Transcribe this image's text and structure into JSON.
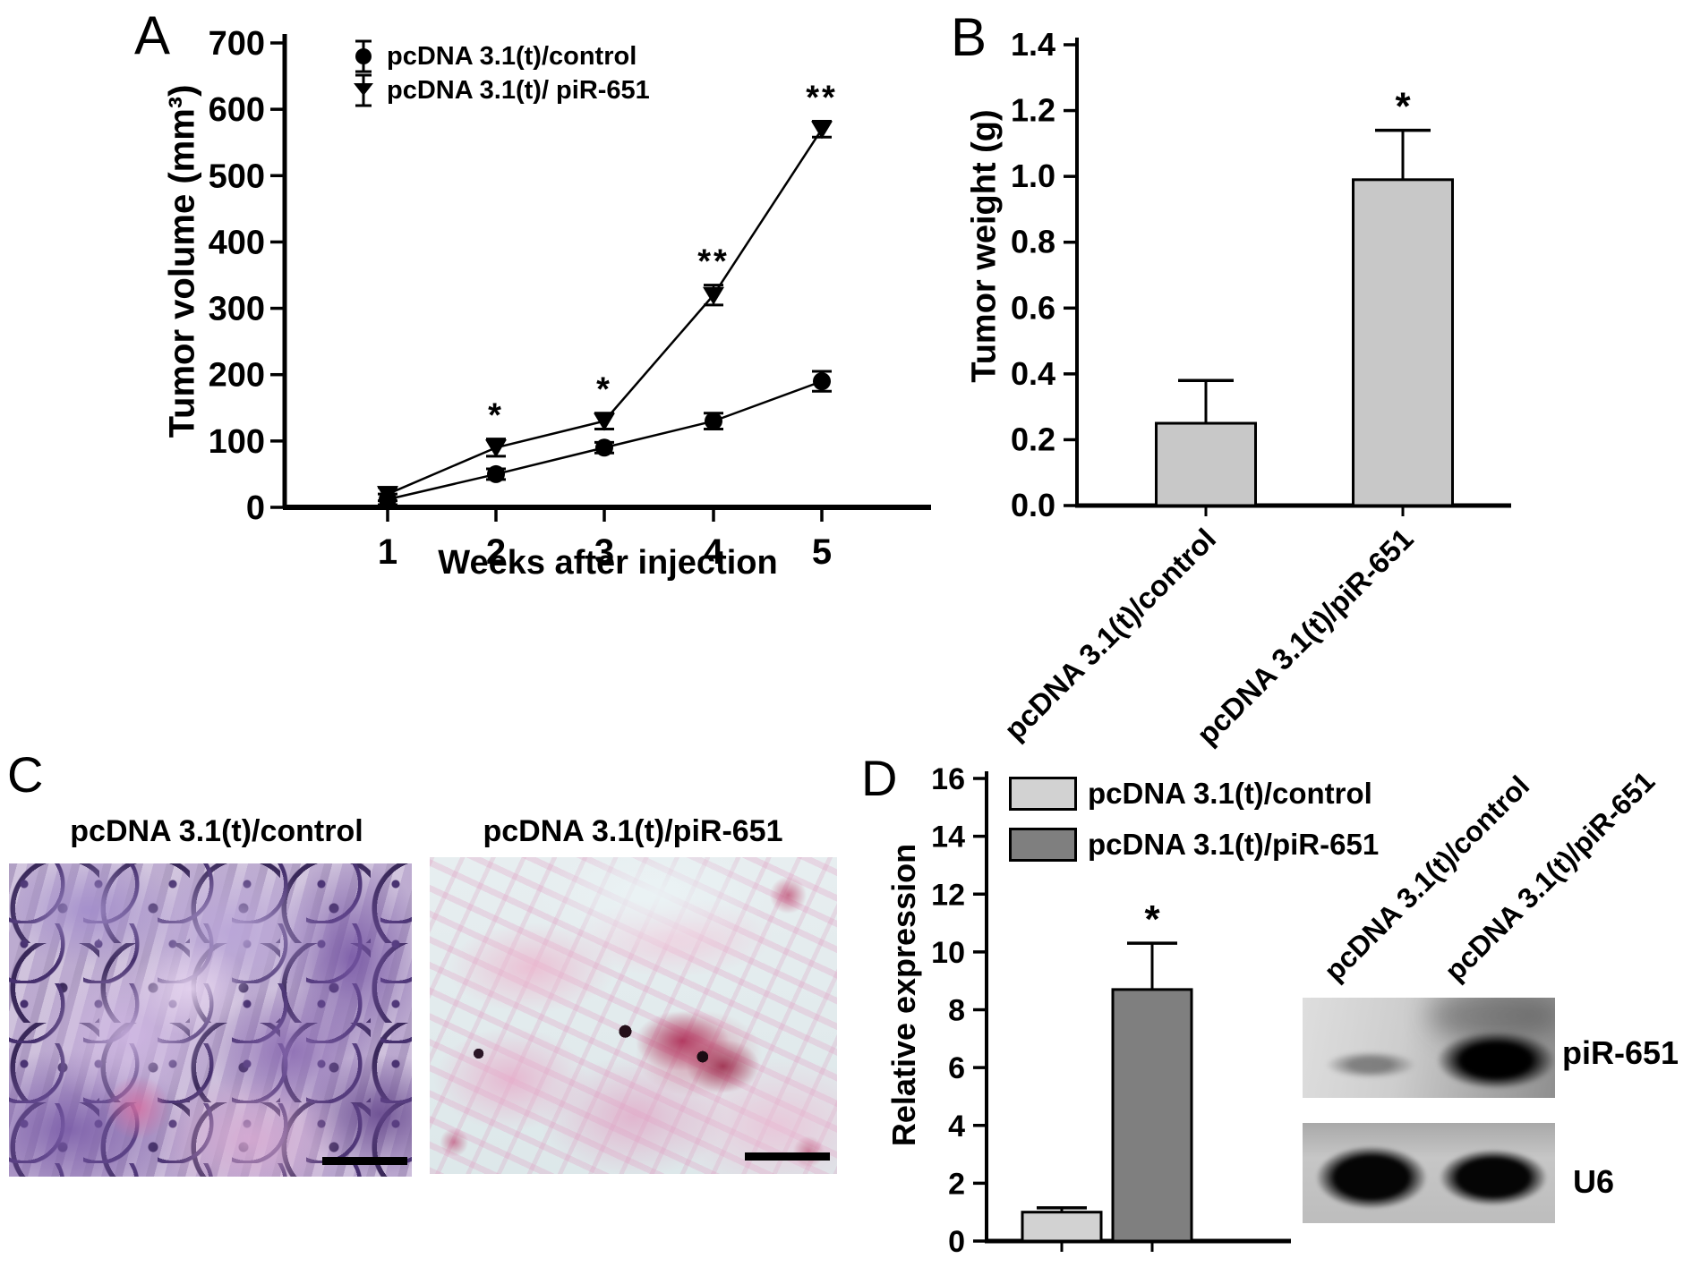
{
  "panels": {
    "a": {
      "label": "A",
      "legend": [
        {
          "icon": "circle-error-bar-icon",
          "label": "pcDNA 3.1(t)/control"
        },
        {
          "icon": "triangle-down-error-bar-icon",
          "label": "pcDNA 3.1(t)/ piR-651"
        }
      ]
    },
    "b": {
      "label": "B"
    },
    "c": {
      "label": "C",
      "images": [
        {
          "title": "pcDNA 3.1(t)/control",
          "content": "H&E stained tumor section, dense purple-violet tissue",
          "scale_bar": "black scale bar"
        },
        {
          "title": "pcDNA 3.1(t)/piR-651",
          "content": "H&E stained tumor section, loose pink tissue with red blood cell clusters",
          "scale_bar": "black scale bar"
        }
      ]
    },
    "d": {
      "label": "D",
      "legend": [
        {
          "swatch_color": "#d2d2d2",
          "label": "pcDNA 3.1(t)/control"
        },
        {
          "swatch_color": "#7f7f7f",
          "label": "pcDNA 3.1(t)/piR-651"
        }
      ],
      "blot": {
        "lanes": [
          "pcDNA 3.1(t)/control",
          "pcDNA 3.1(t)/piR-651"
        ],
        "rows": [
          {
            "label": "piR-651",
            "bands": [
              "faint",
              "strong"
            ]
          },
          {
            "label": "U6",
            "bands": [
              "strong",
              "strong"
            ]
          }
        ]
      }
    }
  },
  "chart_data": [
    {
      "id": "tumor-volume",
      "type": "line",
      "title": "",
      "xlabel": "Weeks after injection",
      "ylabel": "Tumor volume (mm³)",
      "x": [
        1,
        2,
        3,
        4,
        5
      ],
      "ylim": [
        0,
        700
      ],
      "ytick_step": 100,
      "grid": false,
      "legend_position": "top-left-inside",
      "series": [
        {
          "name": "pcDNA 3.1(t)/control",
          "marker": "circle",
          "values": [
            12,
            50,
            90,
            130,
            190
          ],
          "errors": [
            8,
            8,
            8,
            12,
            15
          ],
          "significance": [
            "",
            "",
            "",
            "",
            ""
          ]
        },
        {
          "name": "pcDNA 3.1(t)/piR-651",
          "marker": "triangle-down",
          "values": [
            20,
            90,
            130,
            320,
            570
          ],
          "errors": [
            10,
            13,
            12,
            15,
            12
          ],
          "significance": [
            "",
            "*",
            "*",
            "**",
            "**"
          ]
        }
      ]
    },
    {
      "id": "tumor-weight",
      "type": "bar",
      "ylabel": "Tumor weight (g)",
      "categories": [
        "pcDNA 3.1(t)/control",
        "pcDNA 3.1(t)/piR-651"
      ],
      "values": [
        0.25,
        0.99
      ],
      "errors": [
        0.13,
        0.15
      ],
      "significance": [
        "",
        "*"
      ],
      "ylim": [
        0,
        1.4
      ],
      "ytick_step": 0.2,
      "bar_colors": [
        "#c8c8c8",
        "#c8c8c8"
      ]
    },
    {
      "id": "relative-expression",
      "type": "bar",
      "ylabel": "Relative expression",
      "categories": [
        "pcDNA 3.1(t)/control",
        "pcDNA 3.1(t)/piR-651"
      ],
      "values": [
        1.0,
        8.7
      ],
      "errors": [
        0.15,
        1.6
      ],
      "significance": [
        "",
        "*"
      ],
      "ylim": [
        0,
        16
      ],
      "ytick_step": 2,
      "bar_colors": [
        "#d2d2d2",
        "#7f7f7f"
      ]
    }
  ]
}
